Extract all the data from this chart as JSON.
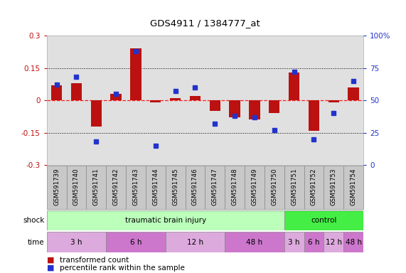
{
  "title": "GDS4911 / 1384777_at",
  "samples": [
    "GSM591739",
    "GSM591740",
    "GSM591741",
    "GSM591742",
    "GSM591743",
    "GSM591744",
    "GSM591745",
    "GSM591746",
    "GSM591747",
    "GSM591748",
    "GSM591749",
    "GSM591750",
    "GSM591751",
    "GSM591752",
    "GSM591753",
    "GSM591754"
  ],
  "bar_values": [
    0.07,
    0.08,
    -0.12,
    0.03,
    0.24,
    -0.01,
    0.01,
    0.02,
    -0.05,
    -0.08,
    -0.09,
    -0.06,
    0.13,
    -0.14,
    -0.01,
    0.06
  ],
  "pct_values": [
    62,
    68,
    18,
    55,
    88,
    15,
    57,
    60,
    32,
    38,
    37,
    27,
    72,
    20,
    40,
    65
  ],
  "ylim": [
    -0.3,
    0.3
  ],
  "y2lim": [
    0,
    100
  ],
  "yticks": [
    -0.3,
    -0.15,
    0.0,
    0.15,
    0.3
  ],
  "y2ticks": [
    0,
    25,
    50,
    75,
    100
  ],
  "ytick_labels": [
    "-0.3",
    "-0.15",
    "0",
    "0.15",
    "0.3"
  ],
  "y2tick_labels": [
    "0",
    "25",
    "50",
    "75",
    "100%"
  ],
  "bar_color": "#bb1111",
  "dot_color": "#2233cc",
  "plot_bg": "#e0e0e0",
  "shock_groups": [
    {
      "label": "traumatic brain injury",
      "start": 0,
      "end": 12,
      "color": "#bbffbb"
    },
    {
      "label": "control",
      "start": 12,
      "end": 16,
      "color": "#44ee44"
    }
  ],
  "time_groups": [
    {
      "label": "3 h",
      "start": 0,
      "end": 3,
      "color": "#ddaadd"
    },
    {
      "label": "6 h",
      "start": 3,
      "end": 6,
      "color": "#cc77cc"
    },
    {
      "label": "12 h",
      "start": 6,
      "end": 9,
      "color": "#ddaadd"
    },
    {
      "label": "48 h",
      "start": 9,
      "end": 12,
      "color": "#cc77cc"
    },
    {
      "label": "3 h",
      "start": 12,
      "end": 13,
      "color": "#ddaadd"
    },
    {
      "label": "6 h",
      "start": 13,
      "end": 14,
      "color": "#cc77cc"
    },
    {
      "label": "12 h",
      "start": 14,
      "end": 15,
      "color": "#ddaadd"
    },
    {
      "label": "48 h",
      "start": 15,
      "end": 16,
      "color": "#cc77cc"
    }
  ],
  "legend_bar_label": "transformed count",
  "legend_dot_label": "percentile rank within the sample",
  "shock_label": "shock",
  "time_label": "time",
  "sample_box_color": "#c8c8c8",
  "sample_box_edge": "#888888"
}
